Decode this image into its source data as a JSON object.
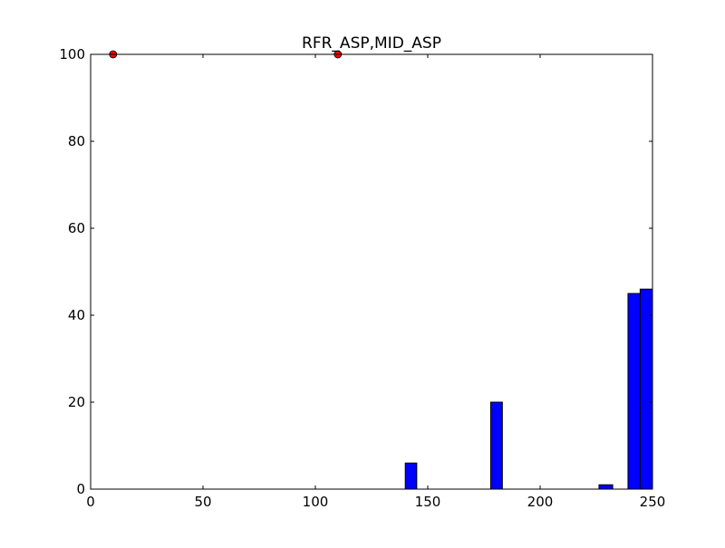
{
  "chart_data": {
    "type": "bar",
    "title": "RFR_ASP,MID_ASP",
    "xlabel": "",
    "ylabel": "",
    "xlim": [
      0,
      250
    ],
    "ylim": [
      0,
      100
    ],
    "grid": false,
    "x_ticks": [
      0,
      50,
      100,
      150,
      200,
      250
    ],
    "y_ticks": [
      0,
      20,
      40,
      60,
      80,
      100
    ],
    "bar_color": "#0000ff",
    "point_color": "#ff0000",
    "bars": [
      {
        "x_start": 140.0,
        "x_end": 145.1,
        "value": 6
      },
      {
        "x_start": 145.1,
        "x_end": 150.1,
        "value": 0
      },
      {
        "x_start": 150.1,
        "x_end": 155.1,
        "value": 0
      },
      {
        "x_start": 155.1,
        "x_end": 160.1,
        "value": 0
      },
      {
        "x_start": 160.1,
        "x_end": 165.1,
        "value": 0
      },
      {
        "x_start": 165.1,
        "x_end": 170.1,
        "value": 0
      },
      {
        "x_start": 170.1,
        "x_end": 175.1,
        "value": 0
      },
      {
        "x_start": 175.1,
        "x_end": 178.0,
        "value": 0
      },
      {
        "x_start": 178.0,
        "x_end": 183.2,
        "value": 20
      },
      {
        "x_start": 183.2,
        "x_end": 188.5,
        "value": 0
      },
      {
        "x_start": 188.5,
        "x_end": 193.7,
        "value": 0
      },
      {
        "x_start": 193.7,
        "x_end": 198.9,
        "value": 0
      },
      {
        "x_start": 198.9,
        "x_end": 204.1,
        "value": 0
      },
      {
        "x_start": 204.1,
        "x_end": 209.3,
        "value": 0
      },
      {
        "x_start": 209.3,
        "x_end": 214.5,
        "value": 0
      },
      {
        "x_start": 214.5,
        "x_end": 219.7,
        "value": 0
      },
      {
        "x_start": 219.7,
        "x_end": 224.9,
        "value": 0
      },
      {
        "x_start": 224.9,
        "x_end": 226.2,
        "value": 0
      },
      {
        "x_start": 226.2,
        "x_end": 232.3,
        "value": 1
      },
      {
        "x_start": 232.3,
        "x_end": 237.4,
        "value": 0
      },
      {
        "x_start": 237.4,
        "x_end": 239.1,
        "value": 0
      },
      {
        "x_start": 239.1,
        "x_end": 244.5,
        "value": 45
      },
      {
        "x_start": 244.5,
        "x_end": 250.0,
        "value": 46
      }
    ],
    "points": [
      {
        "x": 10,
        "y": 100
      },
      {
        "x": 110,
        "y": 100
      }
    ]
  }
}
